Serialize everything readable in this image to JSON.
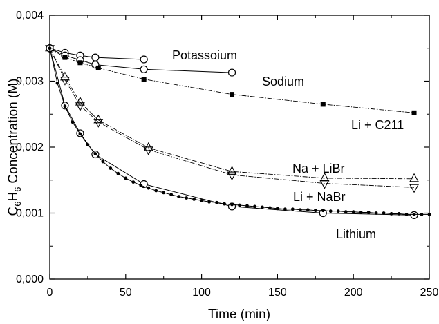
{
  "chart_data": {
    "type": "line",
    "xlabel": "Time (min)",
    "ylabel": "Concentration (M)",
    "ylabel_formula": {
      "c": "C",
      "sub1": "6",
      "h": "H",
      "sub2": "6"
    },
    "xlim": [
      0,
      250
    ],
    "ylim": [
      0,
      0.004
    ],
    "x_ticks": [
      0,
      50,
      100,
      150,
      200,
      250
    ],
    "x_tick_labels": [
      "0",
      "50",
      "100",
      "150",
      "200",
      "250"
    ],
    "y_ticks": [
      0,
      0.001,
      0.002,
      0.003,
      0.004
    ],
    "y_tick_labels": [
      "0,000",
      "0,001",
      "0,002",
      "0,003",
      "0,004"
    ],
    "grid": false,
    "legend": "none (series labeled inline)",
    "series": [
      {
        "name": "Potassoium",
        "marker": "circle-open",
        "line": "solid",
        "x": [
          0,
          10,
          20,
          30,
          62
        ],
        "y": [
          0.0035,
          0.00343,
          0.00339,
          0.00336,
          0.00333
        ]
      },
      {
        "name": "Sodium",
        "marker": "circle-open",
        "line": "solid",
        "x": [
          0,
          10,
          20,
          30,
          62,
          120
        ],
        "y": [
          0.0035,
          0.00339,
          0.00332,
          0.00325,
          0.00318,
          0.00313
        ]
      },
      {
        "name": "Li + C211",
        "marker": "square-filled",
        "line": "dashdot",
        "x": [
          0,
          10,
          20,
          32,
          62,
          120,
          180,
          240
        ],
        "y": [
          0.0035,
          0.00336,
          0.00328,
          0.0032,
          0.00303,
          0.0028,
          0.00265,
          0.00252
        ]
      },
      {
        "name": "Na + LiBr",
        "marker": "triangle-up-open",
        "line": "dashdot",
        "x": [
          0,
          10,
          20,
          32,
          65,
          120,
          181,
          240
        ],
        "y": [
          0.0035,
          0.00306,
          0.00268,
          0.00241,
          0.00199,
          0.00163,
          0.00153,
          0.00152
        ]
      },
      {
        "name": "Li + NaBr",
        "marker": "triangle-down-open",
        "line": "dashdot",
        "x": [
          0,
          10,
          20,
          32,
          65,
          120,
          181,
          240
        ],
        "y": [
          0.0035,
          0.00302,
          0.00263,
          0.00238,
          0.00196,
          0.00158,
          0.00145,
          0.00139
        ]
      },
      {
        "name": "Lithium",
        "marker": "circle-open",
        "line": "solid",
        "x": [
          0,
          10,
          20,
          30,
          62,
          120,
          180,
          240
        ],
        "y": [
          0.0035,
          0.00263,
          0.00221,
          0.00189,
          0.00144,
          0.0011,
          0.001,
          0.00097
        ]
      },
      {
        "name": "Lithium",
        "marker": "dot-filled",
        "line": "solid",
        "x": [
          0,
          5,
          10,
          15,
          20,
          25,
          30,
          35,
          40,
          45,
          50,
          55,
          60,
          65,
          70,
          75,
          80,
          85,
          90,
          95,
          100,
          105,
          110,
          115,
          120,
          125,
          130,
          135,
          140,
          145,
          150,
          155,
          160,
          165,
          170,
          175,
          180,
          185,
          190,
          195,
          200,
          205,
          210,
          215,
          220,
          225,
          230,
          235,
          240,
          245,
          250
        ],
        "y": [
          0.0035,
          0.00297,
          0.00262,
          0.00238,
          0.0022,
          0.00204,
          0.0019,
          0.00178,
          0.00168,
          0.0016,
          0.00153,
          0.00147,
          0.00142,
          0.00138,
          0.00134,
          0.00131,
          0.00128,
          0.00125,
          0.00123,
          0.00121,
          0.00119,
          0.00117,
          0.00116,
          0.00114,
          0.00113,
          0.00112,
          0.00111,
          0.0011,
          0.00109,
          0.00108,
          0.00107,
          0.00106,
          0.00106,
          0.00105,
          0.00105,
          0.00104,
          0.00104,
          0.00103,
          0.00103,
          0.00102,
          0.00102,
          0.00101,
          0.00101,
          0.001,
          0.001,
          0.00099,
          0.00099,
          0.00098,
          0.00098,
          0.00098,
          0.00098
        ]
      }
    ]
  },
  "series_labels": {
    "potassium": "Potassoium",
    "sodium": "Sodium",
    "li_c211": "Li + C211",
    "na_libr": "Na + LiBr",
    "li_nabr": "Li + NaBr",
    "lithium": "Lithium"
  }
}
